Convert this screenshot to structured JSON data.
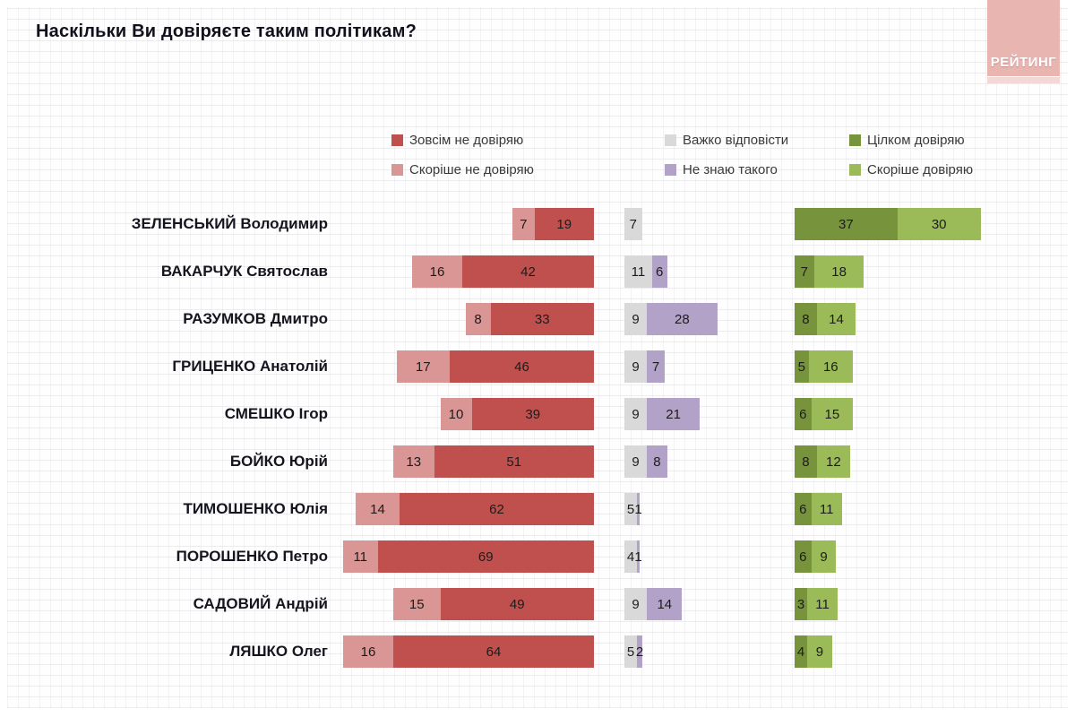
{
  "title": "Наскільки Ви довіряєте таким політикам?",
  "logo": {
    "text": "РЕЙТИНГ"
  },
  "colors": {
    "distrust_full": "#C0504D",
    "distrust_rather": "#D99694",
    "hard_to_answer": "#D9D9D9",
    "dont_know": "#B2A2C7",
    "trust_full": "#77933C",
    "trust_rather": "#9BBB59"
  },
  "legend": [
    {
      "key": "distrust_full",
      "label": "Зовсім не довіряю"
    },
    {
      "key": "distrust_rather",
      "label": "Скоріше не довіряю"
    },
    {
      "key": "hard_to_answer",
      "label": "Важко відповісти"
    },
    {
      "key": "dont_know",
      "label": "Не знаю такого"
    },
    {
      "key": "trust_full",
      "label": "Цілком довіряю"
    },
    {
      "key": "trust_rather",
      "label": "Скоріше довіряю"
    }
  ],
  "chart_data": {
    "type": "bar",
    "orientation": "horizontal-diverging",
    "title": "Наскільки Ви довіряєте таким політикам?",
    "xlabel": "",
    "ylabel": "",
    "axis_visible": false,
    "legend_position": "top",
    "unit": "percent",
    "categories": [
      "ЗЕЛЕНСЬКИЙ Володимир",
      "ВАКАРЧУК Святослав",
      "РАЗУМКОВ Дмитро",
      "ГРИЦЕНКО Анатолій",
      "СМЕШКО Ігор",
      "БОЙКО Юрій",
      "ТИМОШЕНКО Юлія",
      "ПОРОШЕНКО Петро",
      "САДОВИЙ Андрій",
      "ЛЯШКО Олег"
    ],
    "series": [
      {
        "name": "Скоріше не довіряю",
        "key": "distrust_rather",
        "values": [
          7,
          16,
          8,
          17,
          10,
          13,
          14,
          11,
          15,
          16
        ]
      },
      {
        "name": "Зовсім не довіряю",
        "key": "distrust_full",
        "values": [
          19,
          42,
          33,
          46,
          39,
          51,
          62,
          69,
          49,
          64
        ]
      },
      {
        "name": "Важко відповісти",
        "key": "hard_to_answer",
        "values": [
          7,
          11,
          9,
          9,
          9,
          9,
          5,
          4,
          9,
          5
        ]
      },
      {
        "name": "Не знаю такого",
        "key": "dont_know",
        "values": [
          0,
          6,
          28,
          7,
          21,
          8,
          1,
          1,
          14,
          2
        ]
      },
      {
        "name": "Цілком довіряю",
        "key": "trust_full",
        "values": [
          37,
          7,
          8,
          5,
          6,
          8,
          6,
          6,
          3,
          4
        ]
      },
      {
        "name": "Скоріше довіряю",
        "key": "trust_rather",
        "values": [
          30,
          18,
          14,
          16,
          15,
          12,
          11,
          9,
          11,
          9
        ]
      }
    ]
  }
}
